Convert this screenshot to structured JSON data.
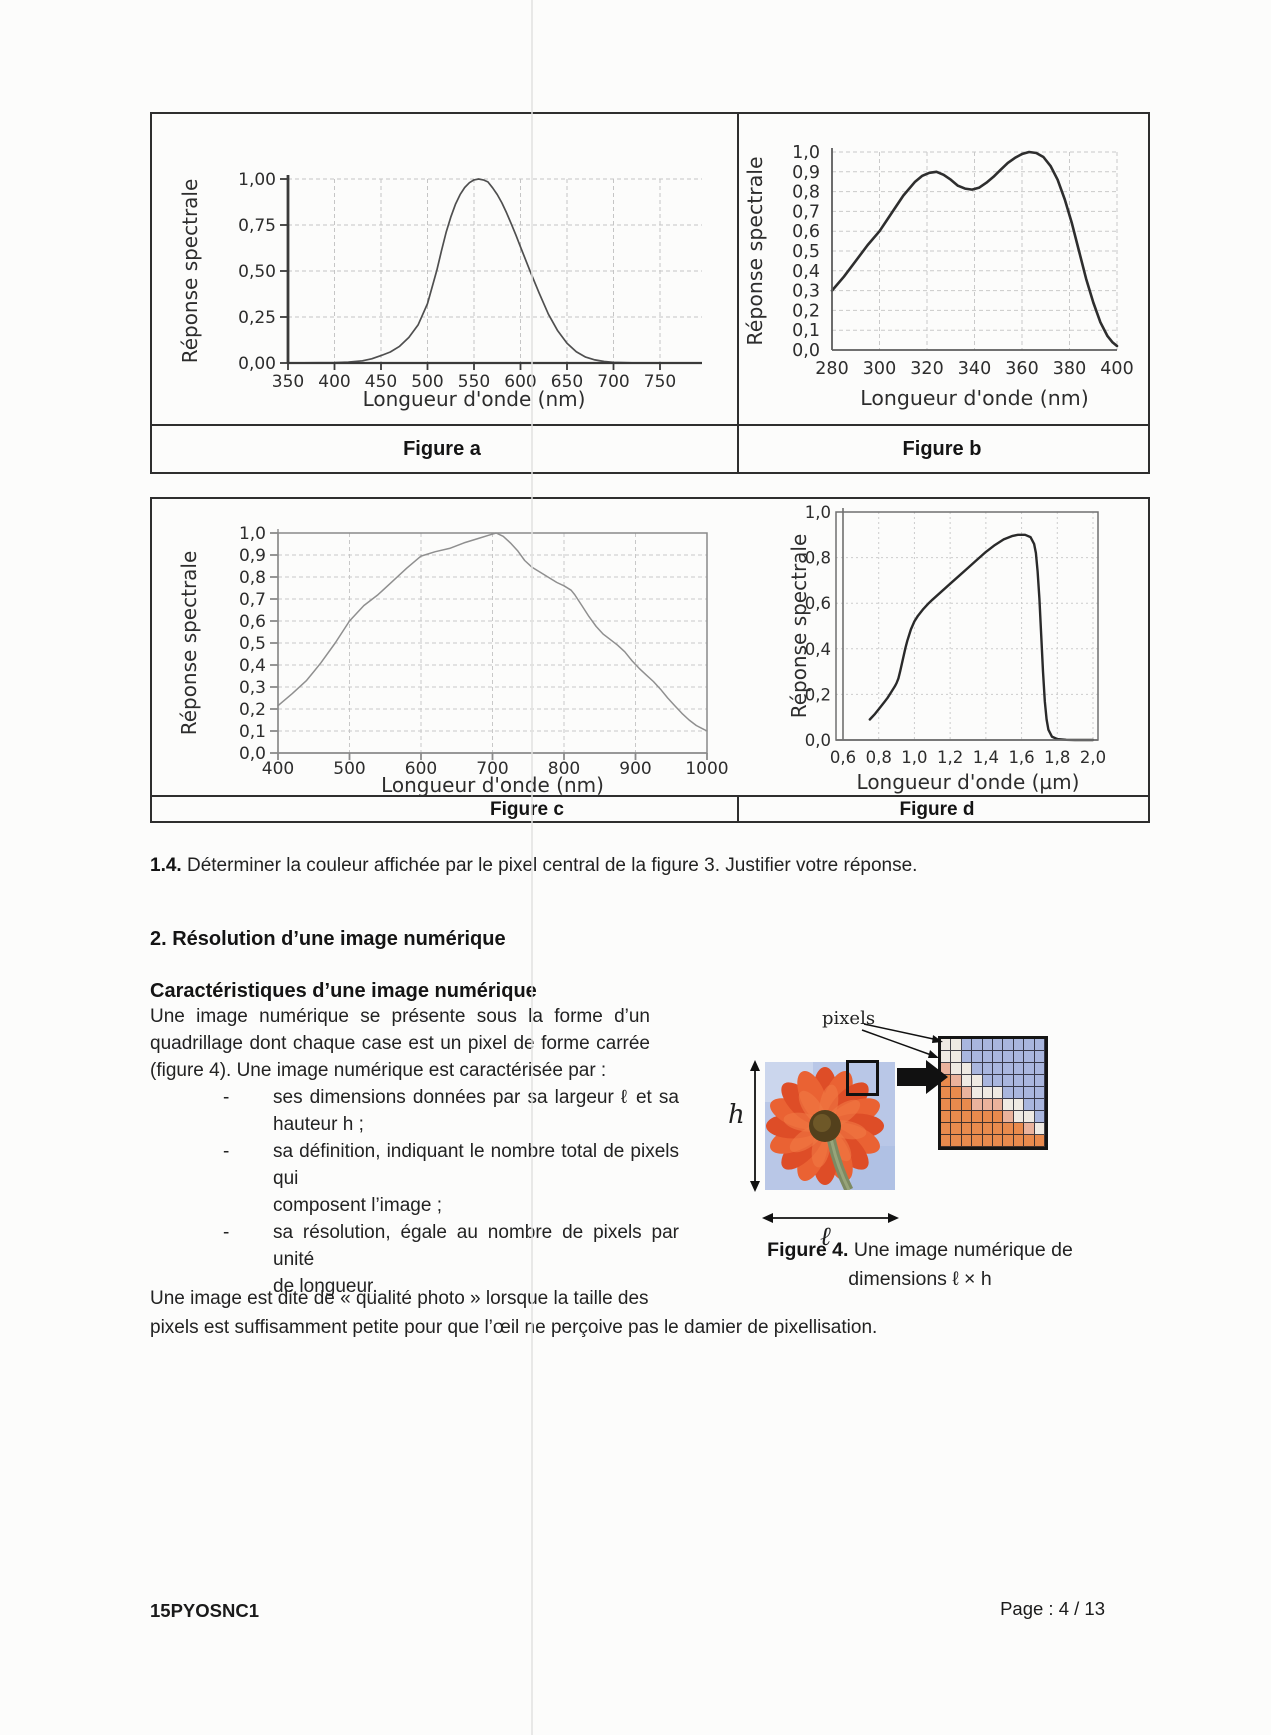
{
  "question_14": {
    "label": "1.4.",
    "text": " Déterminer la couleur affichée par le pixel central de la figure 3. Justifier votre réponse."
  },
  "section2": {
    "heading": "2. Résolution d’une image numérique",
    "subheading": "Caractéristiques d’une image numérique",
    "para_lines": [
      "Une image numérique se présente sous la forme d’un",
      "quadrillage dont chaque case est un pixel de forme carrée",
      "(figure 4). Une image numérique est caractérisée par :"
    ],
    "bullet_marker": "-",
    "bullets": [
      {
        "lines": [
          "ses dimensions données par sa largeur ℓ et sa",
          "hauteur h ;"
        ]
      },
      {
        "lines": [
          "sa définition, indiquant le nombre total de pixels qui",
          "composent l’image ;"
        ]
      },
      {
        "lines": [
          "sa résolution, égale au nombre de pixels par unité",
          "de longueur."
        ]
      }
    ],
    "closing_lines": [
      "Une image est dite de « qualité photo » lorsque la taille des",
      "pixels est suffisamment petite pour que l’œil ne perçoive pas le damier de pixellisation."
    ]
  },
  "figure4": {
    "pixels_label": "pixels",
    "height_label": "h",
    "width_label": "ℓ",
    "caption_prefix": "Figure 4.",
    "caption_text": " Une image numérique de",
    "caption_line2": "dimensions ℓ × h",
    "grid_palette": {
      "b": "#a9b6de",
      "w": "#efeae3",
      "p": "#eab29c",
      "o": "#e98a4d"
    },
    "grid_rows": [
      "wwbbbbbbbb",
      "wwbbbbbbbb",
      "pwwbbbbbbb",
      "opwwbbbbbb",
      "oopwwwbbbb",
      "ooopppwwbb",
      "oooooopwwb",
      "oooooooopw",
      "oooooooooo"
    ]
  },
  "footer": {
    "left": "15PYOSNC1",
    "right": "Page : 4 / 13"
  },
  "chart_data": [
    {
      "id": "a",
      "type": "line",
      "caption": "Figure a",
      "xlabel": "Longueur d'onde (nm)",
      "ylabel": "Réponse spectrale",
      "xlim": [
        350,
        750
      ],
      "ylim": [
        0,
        1
      ],
      "xticks": [
        350,
        400,
        450,
        500,
        550,
        600,
        650,
        700,
        750
      ],
      "xtick_labels": [
        "350",
        "400",
        "450",
        "500",
        "550",
        "600",
        "650",
        "700",
        "750"
      ],
      "yticks": [
        0,
        0.25,
        0.5,
        0.75,
        1
      ],
      "ytick_labels": [
        "0,00",
        "0,25",
        "0,50",
        "0,75",
        "1,00"
      ],
      "grid": true,
      "legend": "none",
      "points": [
        [
          350,
          0
        ],
        [
          400,
          0.002
        ],
        [
          415,
          0.005
        ],
        [
          430,
          0.012
        ],
        [
          440,
          0.023
        ],
        [
          450,
          0.04
        ],
        [
          460,
          0.06
        ],
        [
          470,
          0.091
        ],
        [
          480,
          0.139
        ],
        [
          490,
          0.208
        ],
        [
          500,
          0.323
        ],
        [
          510,
          0.503
        ],
        [
          515,
          0.608
        ],
        [
          520,
          0.71
        ],
        [
          525,
          0.793
        ],
        [
          530,
          0.862
        ],
        [
          535,
          0.915
        ],
        [
          540,
          0.954
        ],
        [
          545,
          0.98
        ],
        [
          550,
          0.995
        ],
        [
          555,
          1.0
        ],
        [
          560,
          0.995
        ],
        [
          565,
          0.984
        ],
        [
          570,
          0.952
        ],
        [
          575,
          0.915
        ],
        [
          580,
          0.87
        ],
        [
          585,
          0.816
        ],
        [
          590,
          0.757
        ],
        [
          595,
          0.695
        ],
        [
          600,
          0.631
        ],
        [
          610,
          0.503
        ],
        [
          620,
          0.381
        ],
        [
          630,
          0.265
        ],
        [
          640,
          0.175
        ],
        [
          650,
          0.107
        ],
        [
          660,
          0.061
        ],
        [
          670,
          0.032
        ],
        [
          680,
          0.017
        ],
        [
          690,
          0.008
        ],
        [
          700,
          0.004
        ],
        [
          720,
          0.001
        ],
        [
          750,
          0
        ]
      ]
    },
    {
      "id": "b",
      "type": "line",
      "caption": "Figure b",
      "xlabel": "Longueur d'onde (nm)",
      "ylabel": "Réponse spectrale",
      "xlim": [
        280,
        400
      ],
      "ylim": [
        0,
        1
      ],
      "xticks": [
        280,
        300,
        320,
        340,
        360,
        380,
        400
      ],
      "xtick_labels": [
        "280",
        "300",
        "320",
        "340",
        "360",
        "380",
        "400"
      ],
      "yticks": [
        0,
        0.1,
        0.2,
        0.3,
        0.4,
        0.5,
        0.6,
        0.7,
        0.8,
        0.9,
        1
      ],
      "ytick_labels": [
        "0,0",
        "0,1",
        "0,2",
        "0,3",
        "0,4",
        "0,5",
        "0,6",
        "0,7",
        "0,8",
        "0,9",
        "1,0"
      ],
      "grid": true,
      "legend": "none",
      "points": [
        [
          280,
          0.3
        ],
        [
          285,
          0.37
        ],
        [
          290,
          0.45
        ],
        [
          295,
          0.53
        ],
        [
          300,
          0.6
        ],
        [
          305,
          0.69
        ],
        [
          310,
          0.78
        ],
        [
          315,
          0.85
        ],
        [
          318,
          0.88
        ],
        [
          321,
          0.895
        ],
        [
          324,
          0.9
        ],
        [
          327,
          0.885
        ],
        [
          330,
          0.86
        ],
        [
          333,
          0.83
        ],
        [
          336,
          0.815
        ],
        [
          339,
          0.81
        ],
        [
          342,
          0.82
        ],
        [
          345,
          0.845
        ],
        [
          348,
          0.875
        ],
        [
          351,
          0.91
        ],
        [
          354,
          0.945
        ],
        [
          357,
          0.97
        ],
        [
          360,
          0.99
        ],
        [
          363,
          1.0
        ],
        [
          366,
          0.995
        ],
        [
          369,
          0.975
        ],
        [
          372,
          0.93
        ],
        [
          375,
          0.86
        ],
        [
          378,
          0.76
        ],
        [
          381,
          0.64
        ],
        [
          384,
          0.5
        ],
        [
          387,
          0.36
        ],
        [
          390,
          0.24
        ],
        [
          393,
          0.14
        ],
        [
          396,
          0.07
        ],
        [
          398,
          0.04
        ],
        [
          400,
          0.02
        ]
      ]
    },
    {
      "id": "c",
      "type": "line",
      "caption": "Figure c",
      "xlabel": "Longueur d'onde (nm)",
      "ylabel": "Réponse spectrale",
      "xlim": [
        400,
        1000
      ],
      "ylim": [
        0,
        1
      ],
      "xticks": [
        400,
        500,
        600,
        700,
        800,
        900,
        1000
      ],
      "xtick_labels": [
        "400",
        "500",
        "600",
        "700",
        "800",
        "900",
        "1000"
      ],
      "yticks": [
        0,
        0.1,
        0.2,
        0.3,
        0.4,
        0.5,
        0.6,
        0.7,
        0.8,
        0.9,
        1
      ],
      "ytick_labels": [
        "0,0",
        "0,1",
        "0,2",
        "0,3",
        "0,4",
        "0,5",
        "0,6",
        "0,7",
        "0,8",
        "0,9",
        "1,0"
      ],
      "grid": true,
      "legend": "none",
      "points": [
        [
          400,
          0.215
        ],
        [
          420,
          0.27
        ],
        [
          440,
          0.33
        ],
        [
          450,
          0.37
        ],
        [
          460,
          0.41
        ],
        [
          480,
          0.5
        ],
        [
          500,
          0.6
        ],
        [
          510,
          0.635
        ],
        [
          520,
          0.67
        ],
        [
          540,
          0.72
        ],
        [
          560,
          0.78
        ],
        [
          580,
          0.84
        ],
        [
          600,
          0.895
        ],
        [
          620,
          0.915
        ],
        [
          640,
          0.93
        ],
        [
          660,
          0.955
        ],
        [
          680,
          0.975
        ],
        [
          695,
          0.99
        ],
        [
          705,
          1.0
        ],
        [
          715,
          0.985
        ],
        [
          725,
          0.955
        ],
        [
          735,
          0.92
        ],
        [
          745,
          0.875
        ],
        [
          755,
          0.845
        ],
        [
          765,
          0.825
        ],
        [
          775,
          0.805
        ],
        [
          790,
          0.775
        ],
        [
          800,
          0.76
        ],
        [
          810,
          0.74
        ],
        [
          815,
          0.72
        ],
        [
          825,
          0.67
        ],
        [
          835,
          0.62
        ],
        [
          845,
          0.575
        ],
        [
          855,
          0.54
        ],
        [
          865,
          0.515
        ],
        [
          875,
          0.49
        ],
        [
          885,
          0.46
        ],
        [
          895,
          0.42
        ],
        [
          905,
          0.385
        ],
        [
          915,
          0.355
        ],
        [
          925,
          0.325
        ],
        [
          935,
          0.29
        ],
        [
          945,
          0.25
        ],
        [
          955,
          0.215
        ],
        [
          965,
          0.18
        ],
        [
          975,
          0.15
        ],
        [
          985,
          0.125
        ],
        [
          995,
          0.108
        ],
        [
          1000,
          0.1
        ]
      ]
    },
    {
      "id": "d",
      "type": "line",
      "caption": "Figure d",
      "xlabel": "Longueur d'onde (µm)",
      "ylabel": "Réponse spectrale",
      "xlim": [
        0.6,
        2.0
      ],
      "ylim": [
        0,
        1
      ],
      "xticks": [
        0.6,
        0.8,
        1.0,
        1.2,
        1.4,
        1.6,
        1.8,
        2.0
      ],
      "xtick_labels": [
        "0,6",
        "0,8",
        "1,0",
        "1,2",
        "1,4",
        "1,6",
        "1,8",
        "2,0"
      ],
      "yticks": [
        0,
        0.2,
        0.4,
        0.6,
        0.8,
        1
      ],
      "ytick_labels": [
        "0,0",
        "0,2",
        "0,4",
        "0,6",
        "0,8",
        "1,0"
      ],
      "grid": true,
      "legend": "none",
      "points": [
        [
          0.75,
          0.09
        ],
        [
          0.78,
          0.115
        ],
        [
          0.8,
          0.135
        ],
        [
          0.83,
          0.165
        ],
        [
          0.85,
          0.185
        ],
        [
          0.87,
          0.21
        ],
        [
          0.89,
          0.235
        ],
        [
          0.9,
          0.25
        ],
        [
          0.91,
          0.27
        ],
        [
          0.92,
          0.3
        ],
        [
          0.93,
          0.335
        ],
        [
          0.94,
          0.37
        ],
        [
          0.95,
          0.405
        ],
        [
          0.96,
          0.435
        ],
        [
          0.97,
          0.46
        ],
        [
          0.98,
          0.485
        ],
        [
          1.0,
          0.52
        ],
        [
          1.02,
          0.545
        ],
        [
          1.05,
          0.575
        ],
        [
          1.08,
          0.6
        ],
        [
          1.1,
          0.615
        ],
        [
          1.15,
          0.65
        ],
        [
          1.2,
          0.685
        ],
        [
          1.25,
          0.72
        ],
        [
          1.3,
          0.755
        ],
        [
          1.35,
          0.79
        ],
        [
          1.4,
          0.825
        ],
        [
          1.45,
          0.855
        ],
        [
          1.5,
          0.88
        ],
        [
          1.55,
          0.895
        ],
        [
          1.58,
          0.9
        ],
        [
          1.62,
          0.9
        ],
        [
          1.65,
          0.89
        ],
        [
          1.67,
          0.86
        ],
        [
          1.68,
          0.82
        ],
        [
          1.69,
          0.74
        ],
        [
          1.7,
          0.62
        ],
        [
          1.71,
          0.46
        ],
        [
          1.72,
          0.3
        ],
        [
          1.73,
          0.17
        ],
        [
          1.74,
          0.09
        ],
        [
          1.75,
          0.045
        ],
        [
          1.77,
          0.015
        ],
        [
          1.8,
          0.004
        ],
        [
          1.85,
          0.001
        ],
        [
          1.9,
          0
        ],
        [
          2.0,
          0
        ]
      ]
    }
  ]
}
